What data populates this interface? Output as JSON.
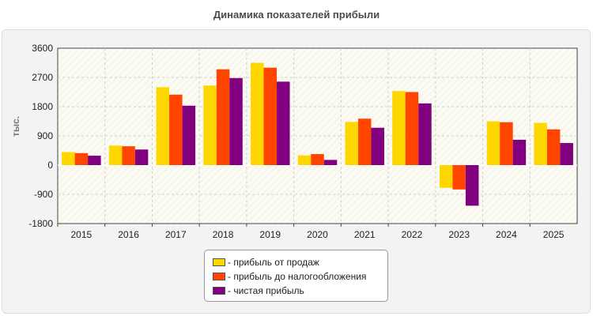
{
  "chart_data": {
    "type": "bar",
    "title": "Динамика показателей прибыли",
    "ylabel": "тыс.",
    "xlabel": "",
    "categories": [
      "2015",
      "2016",
      "2017",
      "2018",
      "2019",
      "2020",
      "2021",
      "2022",
      "2023",
      "2024",
      "2025"
    ],
    "yticks": [
      3600,
      2700,
      1800,
      900,
      0,
      -900,
      -1800
    ],
    "ylim": [
      -1800,
      3600
    ],
    "grid": true,
    "legend_position": "bottom-center",
    "series": [
      {
        "name": "- прибыль от продаж",
        "color": "#FFD700",
        "values": [
          400,
          600,
          2400,
          2450,
          3150,
          300,
          1330,
          2280,
          -700,
          1350,
          1300
        ]
      },
      {
        "name": "- прибыль до налогообложения",
        "color": "#FF4500",
        "values": [
          370,
          580,
          2170,
          2950,
          3000,
          340,
          1430,
          2250,
          -750,
          1320,
          1100
        ]
      },
      {
        "name": "- чистая прибыль",
        "color": "#800080",
        "values": [
          290,
          480,
          1830,
          2680,
          2570,
          160,
          1150,
          1900,
          -1250,
          780,
          680
        ]
      }
    ]
  }
}
